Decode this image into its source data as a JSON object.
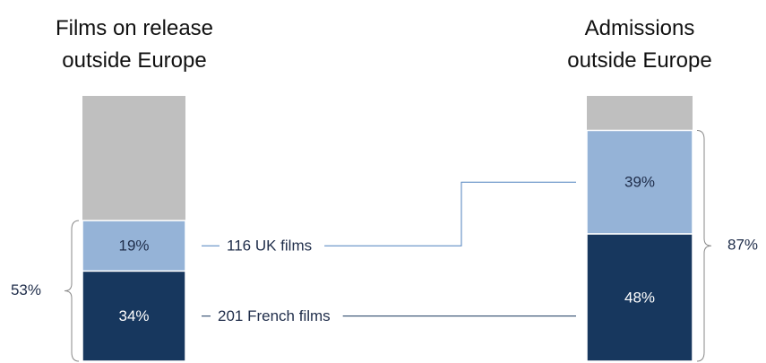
{
  "chart_data": {
    "type": "stacked_bar",
    "categories": [
      "Films on release outside Europe",
      "Admissions outside Europe"
    ],
    "series": [
      {
        "name": "French films",
        "color": "#17375e",
        "values": [
          34,
          48
        ],
        "value_labels": [
          "34%",
          "48%"
        ]
      },
      {
        "name": "UK films",
        "color": "#95b3d7",
        "values": [
          19,
          39
        ],
        "value_labels": [
          "19%",
          "39%"
        ]
      }
    ],
    "remainder_color": "#bfbfbf",
    "ylim": [
      0,
      100
    ],
    "totals": [
      53,
      87
    ],
    "total_labels": [
      "53%",
      "87%"
    ],
    "annotations": [
      "201 French films",
      "116 UK films"
    ]
  }
}
